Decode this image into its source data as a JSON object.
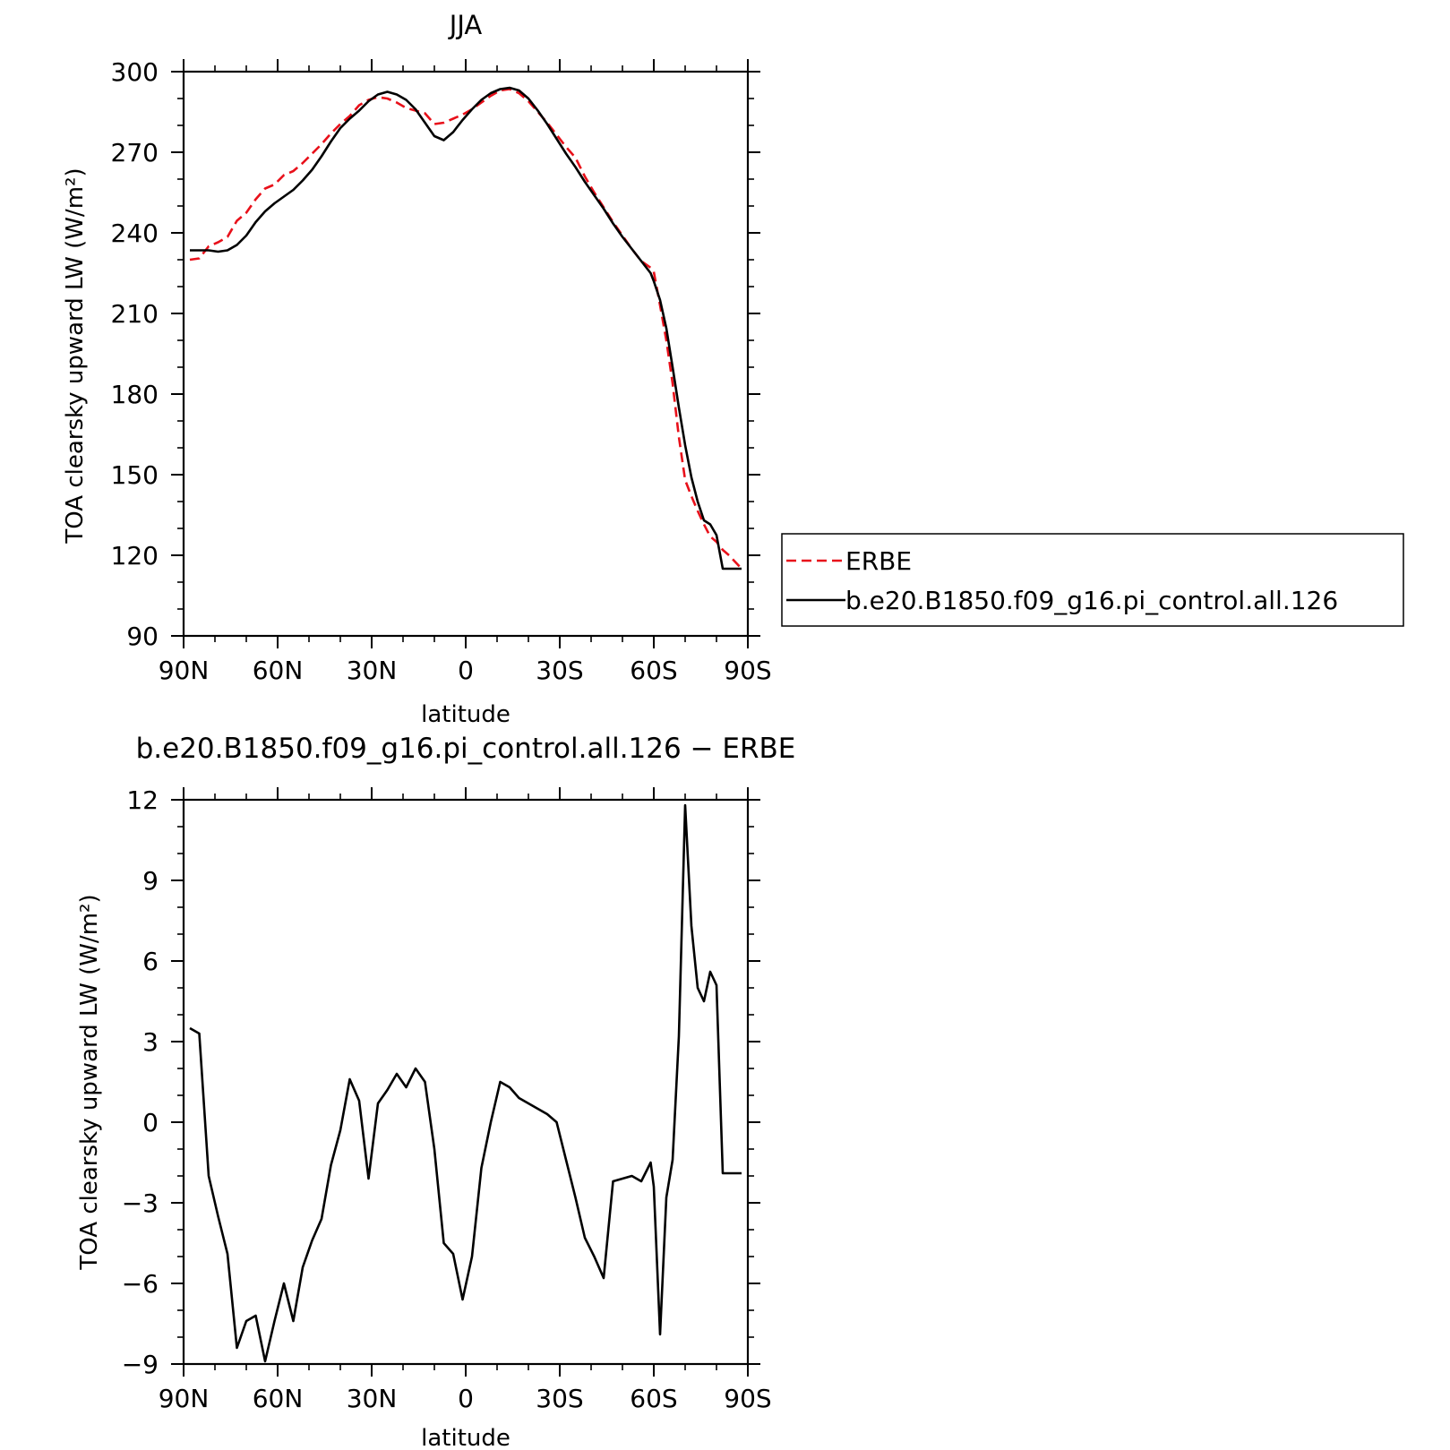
{
  "chart_data": [
    {
      "type": "line",
      "title": "JJA",
      "xlabel": "latitude",
      "ylabel": "TOA clearsky upward LW (W/m²)",
      "xlim": [
        90,
        -90
      ],
      "ylim": [
        90,
        300
      ],
      "x_ticks": [
        90,
        60,
        30,
        0,
        -30,
        -60,
        -90
      ],
      "x_tick_labels": [
        "90N",
        "60N",
        "30N",
        "0",
        "30S",
        "60S",
        "90S"
      ],
      "y_ticks": [
        90,
        120,
        150,
        180,
        210,
        240,
        270,
        300
      ],
      "y_tick_labels": [
        "90",
        "120",
        "150",
        "180",
        "210",
        "240",
        "270",
        "300"
      ],
      "legend_position": "right",
      "series": [
        {
          "name": "ERBE",
          "color": "#e8101a",
          "style": "dashed",
          "x": [
            88,
            85,
            82,
            79,
            76,
            73,
            70,
            67,
            64,
            61,
            58,
            55,
            52,
            49,
            46,
            43,
            40,
            37,
            34,
            31,
            28,
            25,
            22,
            19,
            16,
            13,
            10,
            7,
            4,
            1,
            -2,
            -5,
            -8,
            -11,
            -14,
            -17,
            -20,
            -23,
            -26,
            -29,
            -32,
            -35,
            -38,
            -41,
            -44,
            -47,
            -50,
            -53,
            -56,
            -59,
            -60,
            -62,
            -64,
            -66,
            -68,
            -70,
            -72,
            -74,
            -76,
            -78,
            -80,
            -82,
            -84,
            -86,
            -88
          ],
          "values": [
            230,
            230.5,
            235,
            236.5,
            238.5,
            244.5,
            247.5,
            252.5,
            256.5,
            258,
            261.5,
            263,
            266,
            269.5,
            273,
            277,
            280.5,
            283.5,
            287.5,
            289.5,
            290.5,
            290,
            288.5,
            286.5,
            285.5,
            284.5,
            280.5,
            281,
            282.5,
            284,
            286,
            288.5,
            291,
            293,
            293.5,
            292,
            289,
            285,
            281,
            276.5,
            272,
            268,
            261,
            255,
            249.5,
            244,
            239,
            234,
            229.5,
            227,
            225.5,
            213,
            200,
            184,
            164,
            148,
            142,
            136.5,
            131.5,
            127,
            125,
            122,
            120,
            117.5,
            115
          ]
        },
        {
          "name": "b.e20.B1850.f09_g16.pi_control.all.126",
          "color": "#000000",
          "style": "solid",
          "x": [
            88,
            85,
            82,
            79,
            76,
            73,
            70,
            67,
            64,
            61,
            58,
            55,
            52,
            49,
            46,
            43,
            40,
            37,
            34,
            31,
            28,
            25,
            22,
            19,
            16,
            13,
            10,
            7,
            4,
            1,
            -2,
            -5,
            -8,
            -11,
            -14,
            -17,
            -20,
            -23,
            -26,
            -29,
            -32,
            -35,
            -38,
            -41,
            -44,
            -47,
            -50,
            -53,
            -56,
            -59,
            -60,
            -62,
            -64,
            -66,
            -68,
            -70,
            -72,
            -74,
            -76,
            -78,
            -80,
            -82,
            -84,
            -86,
            -88
          ],
          "values": [
            233.5,
            233.5,
            233.5,
            233,
            233.5,
            235.5,
            239,
            244,
            248,
            251,
            253.5,
            256,
            259.5,
            263.5,
            268.5,
            274,
            279,
            282.5,
            285.5,
            289,
            291.5,
            292.5,
            291.5,
            289.5,
            286,
            281,
            276,
            274.5,
            277.5,
            282,
            286,
            289.5,
            292,
            293.5,
            294,
            293,
            290,
            285.5,
            280.5,
            275,
            269.5,
            264.5,
            259,
            254,
            249,
            243.5,
            238.5,
            234,
            229.5,
            225,
            222,
            215,
            204.5,
            190,
            175,
            161,
            149,
            140,
            133,
            131.5,
            127.5,
            115,
            115,
            115,
            115
          ]
        }
      ]
    },
    {
      "type": "line",
      "title": "b.e20.B1850.f09_g16.pi_control.all.126 − ERBE",
      "xlabel": "latitude",
      "ylabel": "TOA clearsky upward LW (W/m²)",
      "xlim": [
        90,
        -90
      ],
      "ylim": [
        -9,
        12
      ],
      "x_ticks": [
        90,
        60,
        30,
        0,
        -30,
        -60,
        -90
      ],
      "x_tick_labels": [
        "90N",
        "60N",
        "30N",
        "0",
        "30S",
        "60S",
        "90S"
      ],
      "y_ticks": [
        -9,
        -6,
        -3,
        0,
        3,
        6,
        9,
        12
      ],
      "y_tick_labels": [
        "−9",
        "−6",
        "−3",
        "0",
        "3",
        "6",
        "9",
        "12"
      ],
      "series": [
        {
          "color": "#000000",
          "style": "solid",
          "x": [
            88,
            85,
            82,
            79,
            76,
            73,
            70,
            67,
            64,
            61,
            58,
            55,
            52,
            49,
            46,
            43,
            40,
            37,
            34,
            31,
            28,
            25,
            22,
            19,
            16,
            13,
            10,
            7,
            4,
            1,
            -2,
            -5,
            -8,
            -11,
            -14,
            -17,
            -20,
            -23,
            -26,
            -29,
            -32,
            -35,
            -38,
            -41,
            -44,
            -47,
            -50,
            -53,
            -56,
            -59,
            -60,
            -62,
            -64,
            -66,
            -68,
            -70,
            -72,
            -74,
            -76,
            -78,
            -80,
            -82,
            -84,
            -86,
            -88
          ],
          "values": [
            3.5,
            3.3,
            -2,
            -3.5,
            -4.9,
            -8.4,
            -7.4,
            -7.2,
            -8.9,
            -7.4,
            -6,
            -7.4,
            -5.4,
            -4.4,
            -3.6,
            -1.6,
            -0.3,
            1.6,
            0.8,
            -2.1,
            0.7,
            1.2,
            1.8,
            1.3,
            2,
            1.5,
            -1,
            -4.5,
            -4.9,
            -6.6,
            -5,
            -1.7,
            0,
            1.5,
            1.3,
            0.9,
            0.7,
            0.5,
            0.3,
            0,
            -1.4,
            -2.8,
            -4.3,
            -5,
            -5.8,
            -2.2,
            -2.1,
            -2,
            -2.2,
            -1.5,
            -2.4,
            -7.9,
            -2.8,
            -1.4,
            3.2,
            11.8,
            7.3,
            5,
            4.5,
            5.6,
            5.1,
            -1.9,
            -1.9,
            -1.9,
            -1.9
          ]
        }
      ]
    }
  ]
}
